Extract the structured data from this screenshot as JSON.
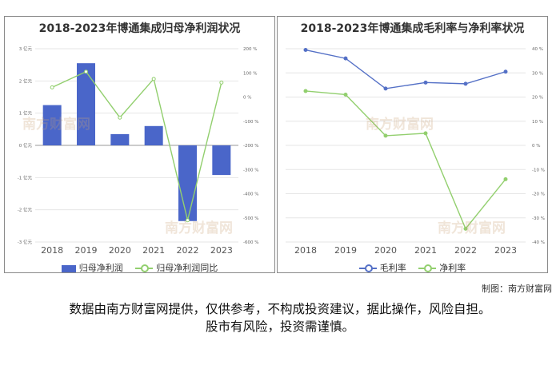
{
  "watermark": "南方财富网",
  "credit": "制图：南方财富网",
  "disclaimer": {
    "line1": "数据由南方财富网提供，仅供参考，不构成投资建议，据此操作，风险自担。",
    "line2": "股市有风险，投资需谨慎。"
  },
  "colors": {
    "bar": "#4a66c9",
    "green_line": "#92cf6e",
    "blue_line": "#5470c6",
    "grid": "#e6e6e6"
  },
  "chart_data": [
    {
      "type": "bar",
      "title": "2018-2023年博通集成归母净利润状况",
      "categories": [
        "2018",
        "2019",
        "2020",
        "2021",
        "2022",
        "2023"
      ],
      "y_left": {
        "ticks": [
          "3 亿元",
          "2 亿元",
          "1 亿元",
          "0 亿元",
          "-1 亿元",
          "-2 亿元",
          "-3 亿元"
        ],
        "ylim": [
          -3,
          3
        ]
      },
      "y_right": {
        "ticks": [
          "200 %",
          "100 %",
          "0 %",
          "-100 %",
          "-200 %",
          "-300 %",
          "-400 %",
          "-500 %",
          "-600 %"
        ],
        "ylim": [
          -600,
          200
        ]
      },
      "series": [
        {
          "name": "归母净利润",
          "type": "bar",
          "axis": "left",
          "values": [
            1.25,
            2.55,
            0.35,
            0.6,
            -2.35,
            -0.92
          ]
        },
        {
          "name": "归母净利润同比",
          "type": "line",
          "axis": "right",
          "values": [
            40,
            105,
            -85,
            75,
            -510,
            60
          ]
        }
      ],
      "legend_position": "bottom",
      "grid": true
    },
    {
      "type": "line",
      "title": "2018-2023年博通集成毛利率与净利率状况",
      "categories": [
        "2018",
        "2019",
        "2020",
        "2021",
        "2022",
        "2023"
      ],
      "y_left": {
        "ylim": [
          -40,
          40
        ]
      },
      "y_right": {
        "ticks": [
          "40 %",
          "30 %",
          "20 %",
          "10 %",
          "0 %",
          "-10 %",
          "-20 %",
          "-30 %",
          "-40 %"
        ],
        "ylim": [
          -40,
          40
        ]
      },
      "series": [
        {
          "name": "毛利率",
          "values": [
            39.5,
            36,
            23.5,
            26,
            25.5,
            30.5
          ]
        },
        {
          "name": "净利率",
          "values": [
            22.5,
            21,
            4,
            5,
            -34.5,
            -14
          ]
        }
      ],
      "legend_position": "bottom",
      "grid": true
    }
  ]
}
